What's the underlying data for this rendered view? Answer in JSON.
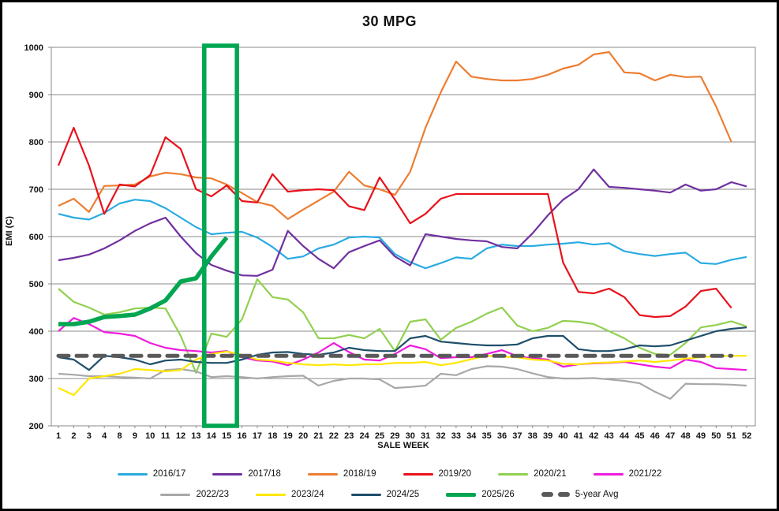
{
  "title": "30 MPG",
  "axes": {
    "y_label": "EMI (C)",
    "x_label": "SALE WEEK",
    "y_min": 200,
    "y_max": 1000,
    "y_tick_step": 100
  },
  "highlight": {
    "week_from": 14,
    "week_to": 15,
    "color": "#00A651"
  },
  "chart_data": {
    "type": "line",
    "title": "30 MPG",
    "xlabel": "SALE WEEK",
    "ylabel": "EMI (C)",
    "ylim": [
      200,
      1000
    ],
    "grid": true,
    "legend_position": "bottom",
    "categories": [
      1,
      2,
      3,
      4,
      8,
      9,
      10,
      11,
      12,
      13,
      14,
      15,
      16,
      17,
      18,
      19,
      20,
      21,
      22,
      23,
      24,
      25,
      29,
      30,
      31,
      32,
      33,
      34,
      35,
      36,
      37,
      38,
      39,
      40,
      41,
      42,
      43,
      44,
      45,
      46,
      47,
      48,
      49,
      50,
      51,
      52
    ],
    "series": [
      {
        "name": "2016/17",
        "color": "#29ABE2",
        "width": 2.2,
        "dash": null,
        "values": [
          648,
          640,
          636,
          650,
          670,
          678,
          675,
          660,
          640,
          620,
          605,
          608,
          610,
          598,
          578,
          553,
          558,
          575,
          583,
          598,
          600,
          598,
          563,
          546,
          533,
          544,
          556,
          553,
          575,
          583,
          580,
          580,
          583,
          585,
          588,
          583,
          586,
          569,
          563,
          559,
          563,
          566,
          544,
          542,
          551,
          557
        ]
      },
      {
        "name": "2017/18",
        "color": "#7030A0",
        "width": 2.2,
        "dash": null,
        "values": [
          550,
          555,
          562,
          575,
          592,
          612,
          628,
          640,
          600,
          565,
          540,
          528,
          518,
          517,
          530,
          612,
          580,
          553,
          533,
          567,
          580,
          592,
          558,
          539,
          605,
          600,
          595,
          592,
          590,
          578,
          575,
          607,
          645,
          678,
          700,
          742,
          705,
          703,
          700,
          697,
          693,
          710,
          697,
          700,
          715,
          706
        ]
      },
      {
        "name": "2018/19",
        "color": "#ED7D31",
        "width": 2.2,
        "dash": null,
        "values": [
          665,
          680,
          652,
          707,
          708,
          710,
          727,
          735,
          732,
          725,
          723,
          710,
          692,
          673,
          665,
          637,
          657,
          676,
          695,
          737,
          708,
          700,
          688,
          737,
          830,
          905,
          970,
          938,
          933,
          930,
          930,
          933,
          942,
          955,
          963,
          985,
          990,
          947,
          945,
          930,
          942,
          937,
          938,
          875,
          800,
          null
        ]
      },
      {
        "name": "2019/20",
        "color": "#E8111B",
        "width": 2.2,
        "dash": null,
        "values": [
          750,
          830,
          750,
          648,
          710,
          706,
          730,
          810,
          785,
          700,
          685,
          708,
          675,
          672,
          732,
          695,
          698,
          700,
          698,
          664,
          656,
          725,
          678,
          628,
          648,
          680,
          690,
          690,
          690,
          690,
          690,
          690,
          690,
          545,
          483,
          480,
          490,
          472,
          434,
          430,
          432,
          452,
          485,
          490,
          449,
          null
        ]
      },
      {
        "name": "2020/21",
        "color": "#92D050",
        "width": 2.2,
        "dash": null,
        "values": [
          490,
          462,
          450,
          435,
          440,
          448,
          450,
          448,
          390,
          312,
          395,
          388,
          425,
          510,
          472,
          467,
          440,
          385,
          385,
          392,
          385,
          405,
          358,
          420,
          425,
          382,
          407,
          420,
          437,
          450,
          412,
          400,
          407,
          422,
          420,
          415,
          400,
          385,
          365,
          352,
          350,
          375,
          408,
          413,
          421,
          410
        ]
      },
      {
        "name": "2021/22",
        "color": "#F01BDE",
        "width": 2.2,
        "dash": null,
        "values": [
          400,
          428,
          415,
          398,
          395,
          390,
          375,
          365,
          360,
          358,
          355,
          358,
          345,
          338,
          336,
          328,
          340,
          355,
          375,
          356,
          340,
          338,
          352,
          370,
          362,
          343,
          345,
          345,
          352,
          360,
          347,
          343,
          340,
          325,
          330,
          332,
          333,
          335,
          330,
          325,
          322,
          340,
          335,
          322,
          320,
          318
        ]
      },
      {
        "name": "2022/23",
        "color": "#A8A8A8",
        "width": 2.2,
        "dash": null,
        "values": [
          310,
          308,
          305,
          305,
          303,
          302,
          300,
          318,
          320,
          315,
          303,
          305,
          303,
          300,
          303,
          305,
          306,
          285,
          295,
          300,
          300,
          298,
          280,
          282,
          285,
          310,
          307,
          320,
          326,
          325,
          320,
          311,
          303,
          300,
          300,
          301,
          298,
          295,
          290,
          272,
          257,
          289,
          288,
          288,
          287,
          285
        ]
      },
      {
        "name": "2023/24",
        "color": "#FFE600",
        "width": 2.2,
        "dash": null,
        "values": [
          280,
          265,
          300,
          305,
          310,
          320,
          318,
          315,
          318,
          340,
          352,
          357,
          350,
          340,
          338,
          333,
          330,
          328,
          330,
          328,
          330,
          330,
          333,
          333,
          335,
          328,
          333,
          341,
          348,
          346,
          345,
          340,
          338,
          331,
          330,
          333,
          334,
          336,
          338,
          335,
          338,
          342,
          345,
          347,
          348,
          348
        ]
      },
      {
        "name": "2024/25",
        "color": "#1F4E6B",
        "width": 2.2,
        "dash": null,
        "values": [
          345,
          340,
          318,
          348,
          345,
          340,
          330,
          338,
          340,
          335,
          333,
          333,
          340,
          350,
          355,
          356,
          352,
          350,
          355,
          365,
          360,
          358,
          358,
          385,
          390,
          378,
          375,
          372,
          370,
          370,
          372,
          385,
          390,
          390,
          362,
          358,
          358,
          362,
          370,
          368,
          370,
          380,
          390,
          400,
          405,
          408
        ]
      },
      {
        "name": "2025/26",
        "color": "#00A651",
        "width": 5.5,
        "dash": null,
        "values": [
          415,
          415,
          420,
          430,
          432,
          435,
          448,
          465,
          505,
          512,
          558,
          598,
          null,
          null,
          null,
          null,
          null,
          null,
          null,
          null,
          null,
          null,
          null,
          null,
          null,
          null,
          null,
          null,
          null,
          null,
          null,
          null,
          null,
          null,
          null,
          null,
          null,
          null,
          null,
          null,
          null,
          null,
          null,
          null,
          null,
          null
        ]
      },
      {
        "name": "5-year Avg",
        "color": "#595959",
        "width": 5,
        "dash": "13 10",
        "values": [
          348,
          348,
          348,
          348,
          348,
          348,
          348,
          348,
          348,
          348,
          348,
          348,
          348,
          348,
          348,
          348,
          348,
          348,
          348,
          348,
          348,
          348,
          348,
          348,
          348,
          348,
          348,
          348,
          348,
          348,
          348,
          348,
          348,
          348,
          348,
          348,
          348,
          348,
          348,
          348,
          348,
          348,
          348,
          348,
          348,
          null
        ]
      }
    ],
    "legend_rows": [
      [
        0,
        1,
        2,
        3,
        4,
        5
      ],
      [
        6,
        7,
        8,
        9,
        10
      ]
    ]
  }
}
